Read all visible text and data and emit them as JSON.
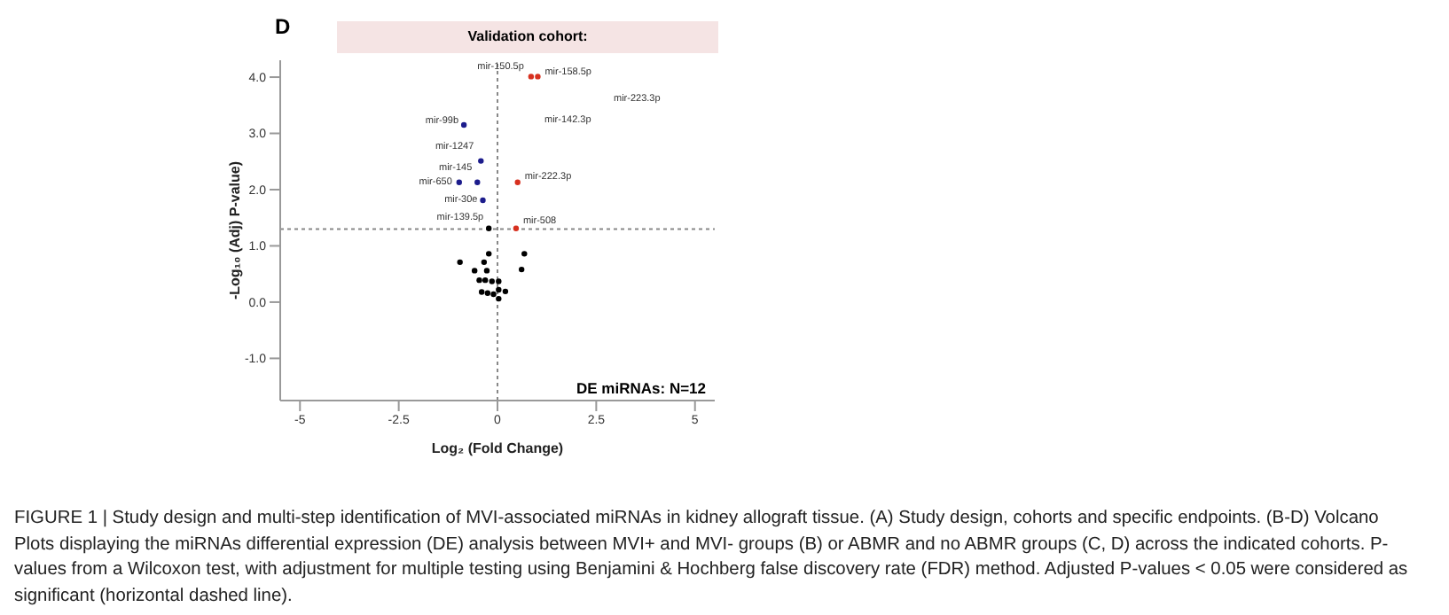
{
  "chart_data": {
    "type": "scatter",
    "title": "Validation cohort:",
    "xlabel": "Log₂ (Fold Change)",
    "ylabel": "-Log₁₀ (Adj) P-value)",
    "xlim": [
      -5.5,
      5.5
    ],
    "xticks": [
      -5,
      -2.5,
      0,
      2.5,
      5
    ],
    "ylim": [
      -1.75,
      4.3
    ],
    "yticks": [
      {
        "value": -1,
        "label": "-1.0"
      },
      {
        "value": 0,
        "label": "0.0"
      },
      {
        "value": 1,
        "label": "1.0"
      },
      {
        "value": 2,
        "label": "2.0"
      },
      {
        "value": 3,
        "label": "3.0"
      },
      {
        "value": 4,
        "label": "4.0"
      }
    ],
    "grid": false,
    "legend": false,
    "marker": "circle",
    "ref_lines": [
      {
        "axis": "x",
        "value": 0,
        "line_style": "dotted",
        "color": "#888888"
      },
      {
        "axis": "y",
        "value": 1.3,
        "line_style": "dotted",
        "color": "#888888"
      }
    ],
    "series": [
      {
        "color": "#d7301f",
        "x": [
          0.85,
          1.02,
          0.51,
          0.47
        ],
        "values": [
          4.01,
          4.01,
          2.13,
          1.31
        ]
      },
      {
        "color": "#1c1c8c",
        "x": [
          -0.85,
          -0.42,
          -0.97,
          -0.51,
          -0.37
        ],
        "values": [
          3.15,
          2.51,
          2.13,
          2.13,
          1.81
        ]
      },
      {
        "color": "#000000",
        "x": [
          -0.22,
          -0.95,
          -0.34,
          -0.22,
          0.68,
          -0.58,
          -0.27,
          0.61,
          -0.46,
          -0.31,
          -0.14,
          0.03,
          -0.4,
          -0.25,
          -0.1,
          0.03,
          0.2,
          0.03
        ],
        "values": [
          1.31,
          0.71,
          0.71,
          0.86,
          0.86,
          0.56,
          0.56,
          0.58,
          0.39,
          0.39,
          0.37,
          0.37,
          0.18,
          0.16,
          0.14,
          0.22,
          0.19,
          0.06
        ]
      }
    ],
    "annotations": [
      {
        "text": "mir-150.5p",
        "x": 0.85,
        "y": 4.01
      },
      {
        "text": "mir-158.5p",
        "x": 1.02,
        "y": 4.01
      },
      {
        "text": "mir-99b",
        "x": -0.85,
        "y": 3.15
      },
      {
        "text": "mir-1247",
        "x": -0.42,
        "y": 2.51
      },
      {
        "text": "mir-650",
        "x": -0.97,
        "y": 2.13
      },
      {
        "text": "mir-145",
        "x": -0.51,
        "y": 2.13
      },
      {
        "text": "mir-222.3p",
        "x": 0.51,
        "y": 2.13
      },
      {
        "text": "mir-30e",
        "x": -0.37,
        "y": 1.81
      },
      {
        "text": "mir-139.5p",
        "x": -0.22,
        "y": 1.31
      },
      {
        "text": "mir-508",
        "x": 0.47,
        "y": 1.31
      },
      "mir-223.3p",
      "mir-142.3p",
      "D",
      "DE miRNAs: N=12",
      "FIGURE 1 | Study design and multi-step identification of MVI-associated miRNAs in kidney allograft tissue. (A) Study design, cohorts and specific endpoints. (B-D) Volcano Plots displaying the miRNAs differential expression (DE) analysis between MVI+ and MVI- groups (B) or ABMR and no ABMR groups (C, D) across the indicated cohorts. P-values from a Wilcoxon test, with adjustment for multiple testing using Benjamini & Hochberg false discovery rate (FDR) method. Adjusted P-values < 0.05 were considered as significant (horizontal dashed line)."
    ]
  }
}
